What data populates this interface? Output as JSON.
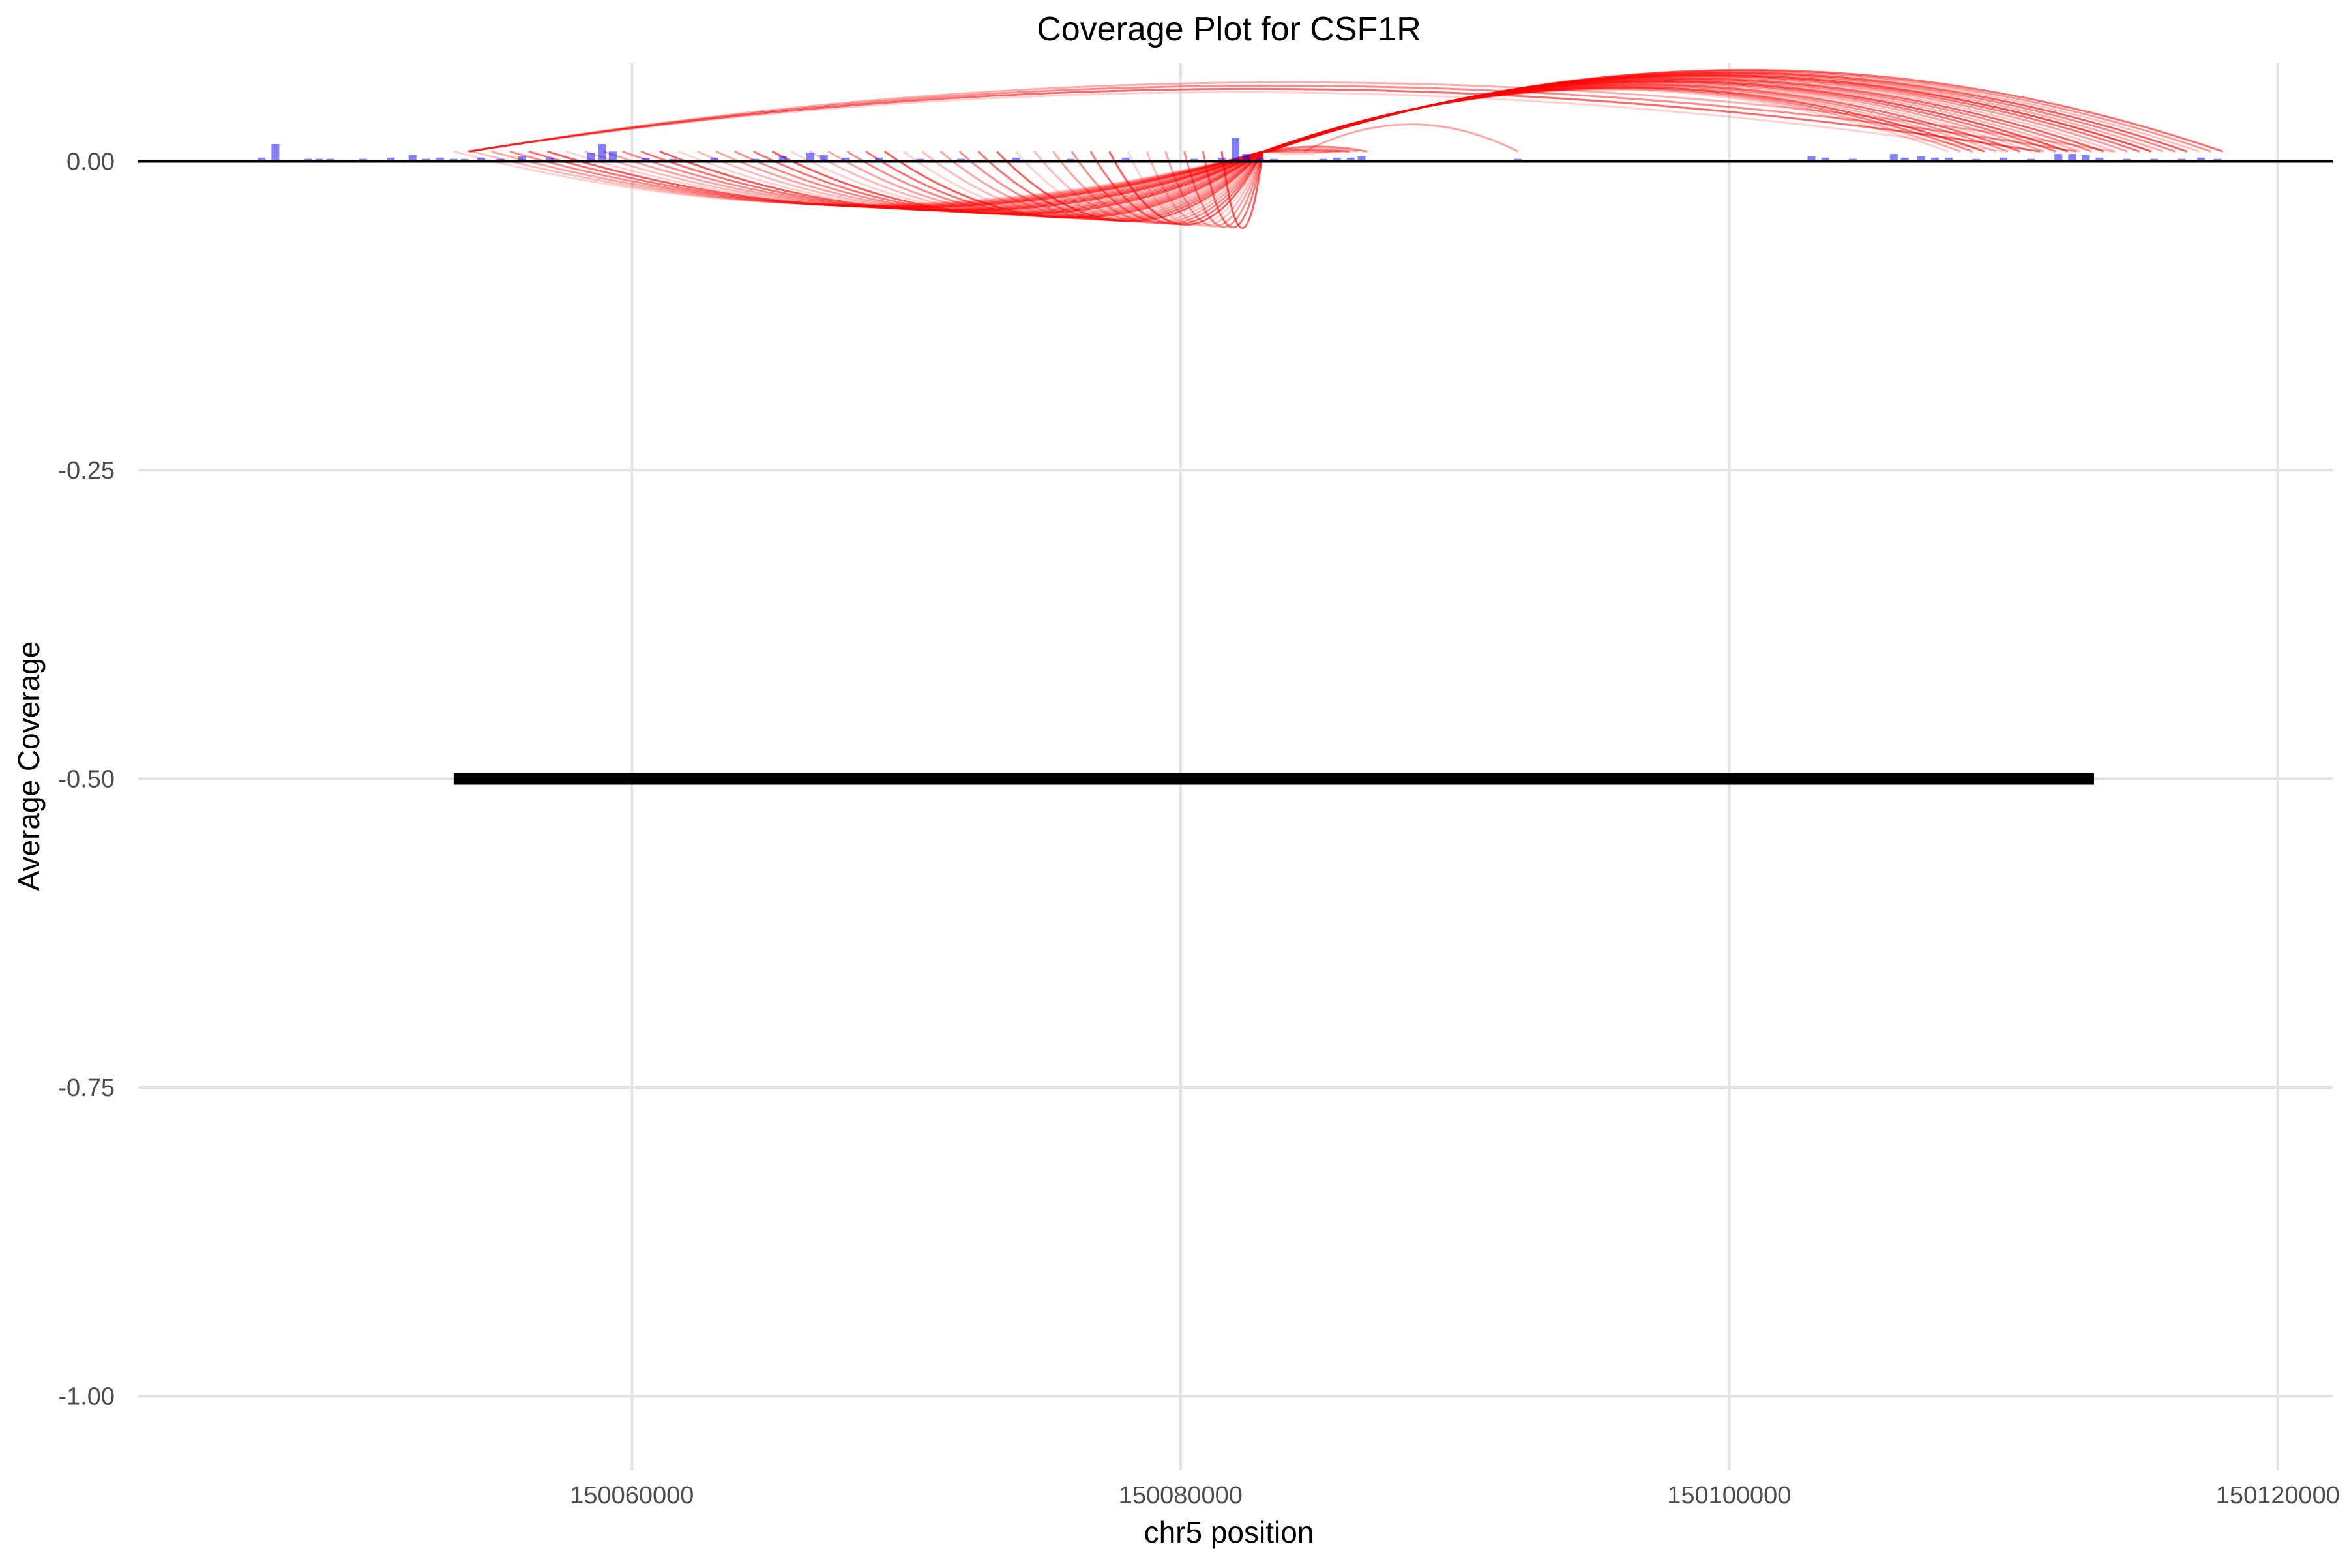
{
  "chart_data": {
    "type": "coverage",
    "title": "Coverage Plot for CSF1R",
    "xlabel": "chr5 position",
    "ylabel": "Average Coverage",
    "xlim": [
      150042000,
      150122000
    ],
    "ylim": [
      -1.06,
      0.08
    ],
    "x_ticks": [
      150060000,
      150080000,
      150100000,
      150120000
    ],
    "x_tick_labels": [
      "150060000",
      "150080000",
      "150100000",
      "150120000"
    ],
    "y_ticks": [
      0.0,
      -0.25,
      -0.5,
      -0.75,
      -1.0
    ],
    "y_tick_labels": [
      "0.00",
      "-0.25",
      "-0.50",
      "-0.75",
      "-1.00"
    ],
    "grid": true,
    "colors": {
      "coverage": "#0000ff",
      "arcs": "#ff0000",
      "baseline": "#000000",
      "gene": "#000000",
      "grid": "#e3e3e3"
    },
    "coverage_series": {
      "name": "coverage",
      "x": [
        150046500,
        150047000,
        150048200,
        150048600,
        150049000,
        150050200,
        150051200,
        150052000,
        150052500,
        150053000,
        150053500,
        150053900,
        150054500,
        150055200,
        150056000,
        150057000,
        150058500,
        150058900,
        150059300,
        150060500,
        150061500,
        150063000,
        150064500,
        150065500,
        150066500,
        150067000,
        150067800,
        150069000,
        150070500,
        150072000,
        150074000,
        150076000,
        150078000,
        150080500,
        150081500,
        150082000,
        150082400,
        150082900,
        150083400,
        150085200,
        150085700,
        150086200,
        150086600,
        150092300,
        150103000,
        150103500,
        150104500,
        150106000,
        150106400,
        150107000,
        150107500,
        150108000,
        150109000,
        150110000,
        150111000,
        150112000,
        150112500,
        150113000,
        150113500,
        150114500,
        150115500,
        150116500,
        150117200,
        150117800
      ],
      "y": [
        0.003,
        0.014,
        0.002,
        0.002,
        0.002,
        0.002,
        0.003,
        0.005,
        0.002,
        0.003,
        0.002,
        0.002,
        0.003,
        0.002,
        0.004,
        0.003,
        0.007,
        0.014,
        0.008,
        0.003,
        0.002,
        0.003,
        0.002,
        0.004,
        0.007,
        0.005,
        0.003,
        0.003,
        0.002,
        0.002,
        0.003,
        0.002,
        0.003,
        0.002,
        0.003,
        0.019,
        0.006,
        0.003,
        0.002,
        0.002,
        0.003,
        0.003,
        0.004,
        0.002,
        0.004,
        0.003,
        0.002,
        0.006,
        0.003,
        0.004,
        0.003,
        0.003,
        0.002,
        0.003,
        0.002,
        0.006,
        0.006,
        0.005,
        0.003,
        0.002,
        0.002,
        0.002,
        0.003,
        0.002
      ]
    },
    "gene": {
      "name": "CSF1R",
      "start": 150053500,
      "end": 150113300,
      "y": -0.5
    },
    "links": {
      "color": "#ff0000",
      "baseline_y": 0.008,
      "groups": [
        {
          "start_from": 150053500,
          "start_to": 150081500,
          "end": 150083000,
          "peak_from": -0.035,
          "peak_to": -0.054,
          "count": 42
        },
        {
          "start_from": 150083000,
          "start_to": 150083200,
          "end_from": 150108000,
          "end_to": 150118000,
          "peak_from": 0.058,
          "peak_to": 0.074,
          "count": 24
        },
        {
          "start_from": 150054000,
          "start_to": 150054100,
          "end_from": 150110000,
          "end_to": 150114000,
          "peak_from": 0.056,
          "peak_to": 0.064,
          "count": 4
        },
        {
          "start_from": 150083000,
          "start_to": 150083100,
          "end_from": 150085500,
          "end_to": 150086800,
          "peak_from": 0.006,
          "peak_to": 0.012,
          "count": 5
        },
        {
          "start_from": 150084500,
          "start_to": 150084600,
          "end_from": 150092300,
          "end_to": 150092300,
          "peak_from": 0.03,
          "peak_to": 0.03,
          "count": 1
        }
      ]
    }
  }
}
